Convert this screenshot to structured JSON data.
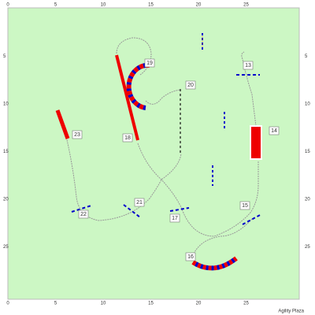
{
  "ticks": [
    0,
    5,
    10,
    15,
    20,
    25
  ],
  "obstacles": [
    "13",
    "14",
    "15",
    "16",
    "17",
    "18",
    "19",
    "20",
    "21",
    "22",
    "23"
  ],
  "footer": "Agility Plaza"
}
